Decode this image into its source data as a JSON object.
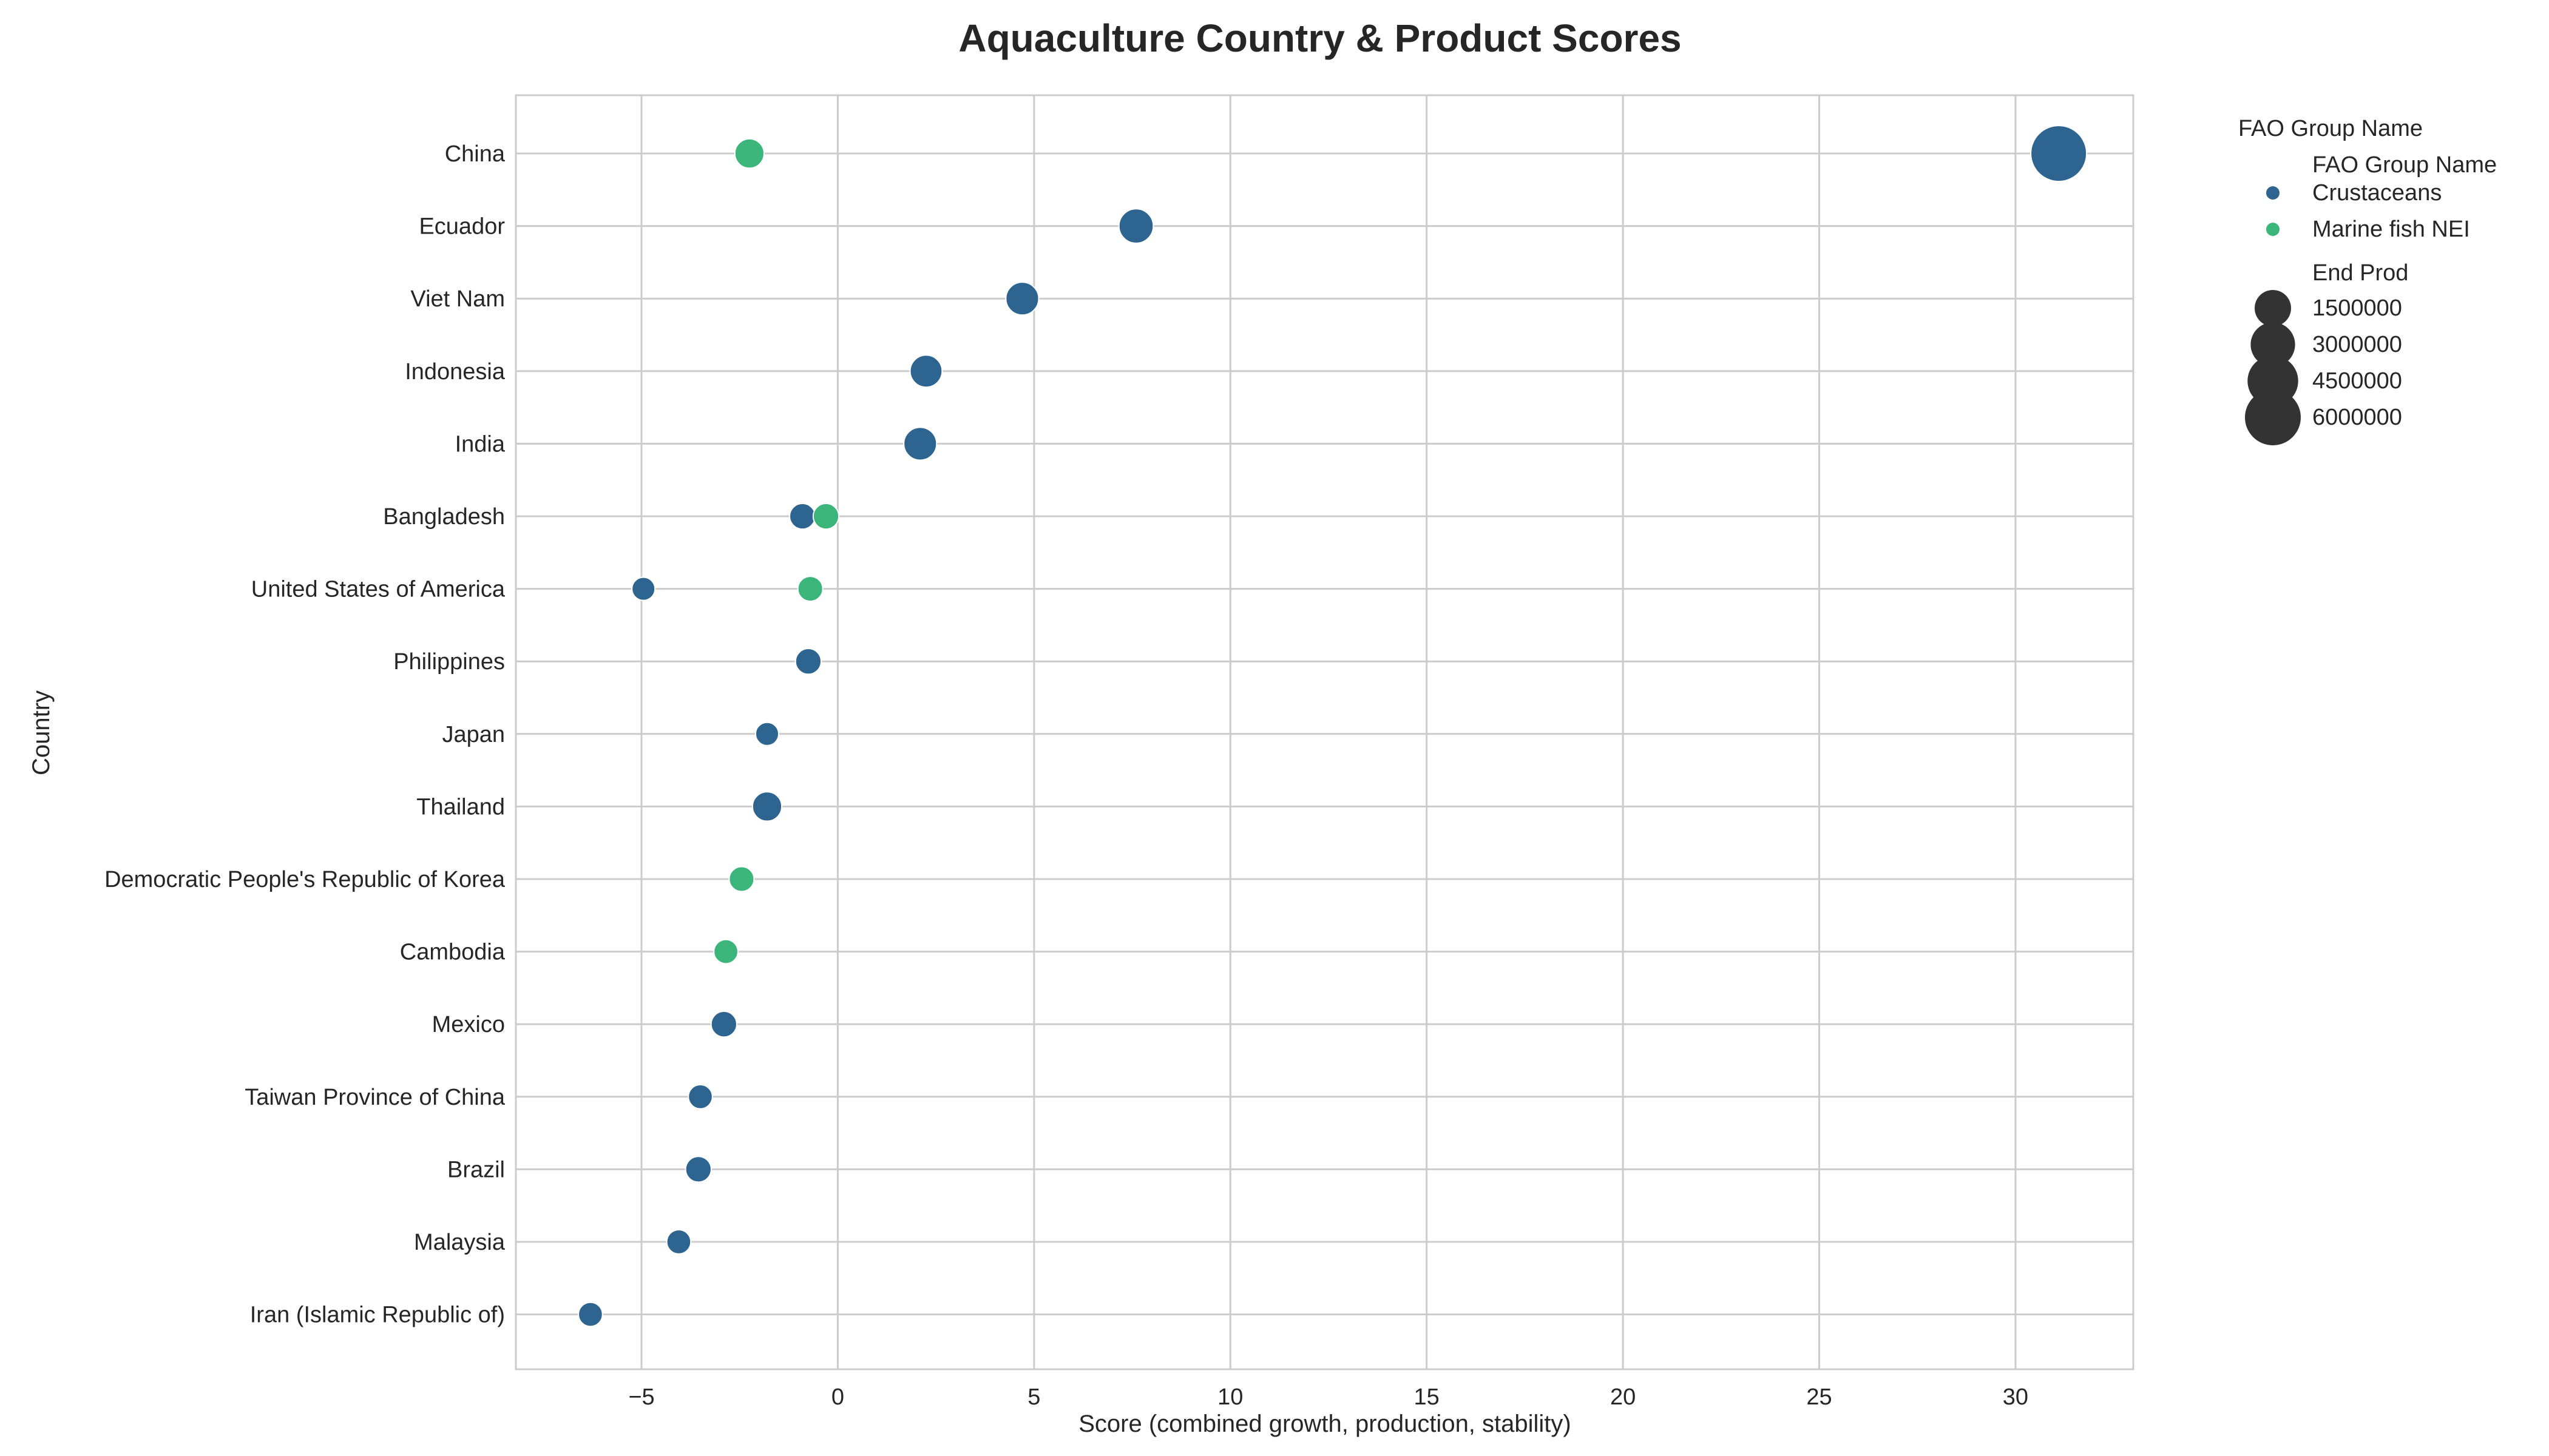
{
  "chart_data": {
    "type": "scatter",
    "title": "Aquaculture Country & Product Scores",
    "xlabel": "Score (combined growth, production, stability)",
    "ylabel": "Country",
    "xlim": [
      -8.2,
      33.0
    ],
    "xticks": [
      -5,
      0,
      5,
      10,
      15,
      20,
      25,
      30
    ],
    "xtick_labels": [
      "−5",
      "0",
      "5",
      "10",
      "15",
      "20",
      "25",
      "30"
    ],
    "grid": true,
    "legend_placement": "outside-top-right",
    "categories": [
      "China",
      "Ecuador",
      "Viet Nam",
      "Indonesia",
      "India",
      "Bangladesh",
      "United States of America",
      "Philippines",
      "Japan",
      "Thailand",
      "Democratic People's Republic of Korea",
      "Cambodia",
      "Mexico",
      "Taiwan Province of China",
      "Brazil",
      "Malaysia",
      "Iran (Islamic Republic of)"
    ],
    "series": [
      {
        "name": "Crustaceans",
        "color": "#2e6590",
        "points": [
          {
            "country": "China",
            "score": 31.1,
            "end_prod": 6000000
          },
          {
            "country": "Ecuador",
            "score": 7.6,
            "end_prod": 1200000
          },
          {
            "country": "Viet Nam",
            "score": 4.7,
            "end_prod": 1000000
          },
          {
            "country": "Indonesia",
            "score": 2.25,
            "end_prod": 900000
          },
          {
            "country": "India",
            "score": 2.1,
            "end_prod": 1000000
          },
          {
            "country": "Bangladesh",
            "score": -0.9,
            "end_prod": 300000
          },
          {
            "country": "United States of America",
            "score": -4.95,
            "end_prod": 150000
          },
          {
            "country": "Philippines",
            "score": -0.75,
            "end_prod": 300000
          },
          {
            "country": "Japan",
            "score": -1.8,
            "end_prod": 150000
          },
          {
            "country": "Thailand",
            "score": -1.8,
            "end_prod": 600000
          },
          {
            "country": "Mexico",
            "score": -2.9,
            "end_prod": 300000
          },
          {
            "country": "Taiwan Province of China",
            "score": -3.5,
            "end_prod": 200000
          },
          {
            "country": "Brazil",
            "score": -3.55,
            "end_prod": 300000
          },
          {
            "country": "Malaysia",
            "score": -4.05,
            "end_prod": 200000
          },
          {
            "country": "Iran (Islamic Republic of)",
            "score": -6.3,
            "end_prod": 200000
          }
        ]
      },
      {
        "name": "Marine fish NEI",
        "color": "#3bb57a",
        "points": [
          {
            "country": "China",
            "score": -2.25,
            "end_prod": 600000
          },
          {
            "country": "Bangladesh",
            "score": -0.3,
            "end_prod": 300000
          },
          {
            "country": "United States of America",
            "score": -0.7,
            "end_prod": 250000
          },
          {
            "country": "Democratic People's Republic of Korea",
            "score": -2.45,
            "end_prod": 250000
          },
          {
            "country": "Cambodia",
            "score": -2.85,
            "end_prod": 200000
          }
        ]
      }
    ],
    "legend": {
      "hue_title": "FAO Group Name",
      "hue_subtitle": "FAO Group Name",
      "size_title": "End Prod",
      "size_values": [
        1500000,
        3000000,
        4500000,
        6000000
      ],
      "size_labels": [
        "1500000",
        "3000000",
        "4500000",
        "6000000"
      ],
      "size_color": "#333333"
    },
    "colors": {
      "grid": "#cccccc",
      "frame": "#cccccc",
      "text": "#262626",
      "title": "#262626"
    }
  }
}
